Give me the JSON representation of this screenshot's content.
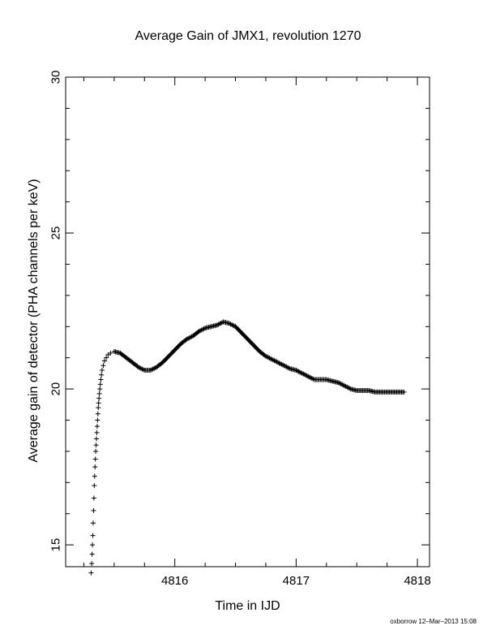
{
  "chart_data": {
    "type": "scatter",
    "title": "Average Gain of JMX1, revolution 1270",
    "xlabel": "Time in IJD",
    "ylabel": "Average gain of detector (PHA channels per keV)",
    "xlim": [
      4815.1,
      4818.1
    ],
    "ylim": [
      14.3,
      30
    ],
    "xticks": [
      4816,
      4817,
      4818
    ],
    "xtick_labels": [
      "4816",
      "4817",
      "4818"
    ],
    "yticks": [
      15,
      20,
      25,
      30
    ],
    "ytick_labels": [
      "15",
      "20",
      "25",
      "30"
    ],
    "marker": "plus",
    "grid": false,
    "series": [
      {
        "color": "#000000",
        "points": [
          [
            4815.31,
            14.1
          ],
          [
            4815.315,
            14.4
          ],
          [
            4815.318,
            14.7
          ],
          [
            4815.321,
            15.0
          ],
          [
            4815.324,
            15.3
          ],
          [
            4815.327,
            15.7
          ],
          [
            4815.33,
            16.1
          ],
          [
            4815.333,
            16.5
          ],
          [
            4815.336,
            16.9
          ],
          [
            4815.339,
            17.2
          ],
          [
            4815.342,
            17.5
          ],
          [
            4815.345,
            17.75
          ],
          [
            4815.348,
            18.0
          ],
          [
            4815.351,
            18.2
          ],
          [
            4815.354,
            18.4
          ],
          [
            4815.357,
            18.6
          ],
          [
            4815.36,
            18.8
          ],
          [
            4815.363,
            19.0
          ],
          [
            4815.366,
            19.2
          ],
          [
            4815.369,
            19.4
          ],
          [
            4815.372,
            19.55
          ],
          [
            4815.375,
            19.7
          ],
          [
            4815.378,
            19.85
          ],
          [
            4815.382,
            20.0
          ],
          [
            4815.386,
            20.15
          ],
          [
            4815.39,
            20.3
          ],
          [
            4815.395,
            20.45
          ],
          [
            4815.4,
            20.6
          ],
          [
            4815.41,
            20.75
          ],
          [
            4815.42,
            20.9
          ],
          [
            4815.435,
            21.0
          ],
          [
            4815.45,
            21.1
          ],
          [
            4815.47,
            21.15
          ],
          [
            4815.5,
            21.2
          ],
          [
            4815.55,
            21.15
          ],
          [
            4815.6,
            21.0
          ],
          [
            4815.65,
            20.85
          ],
          [
            4815.7,
            20.7
          ],
          [
            4815.75,
            20.6
          ],
          [
            4815.8,
            20.6
          ],
          [
            4815.85,
            20.7
          ],
          [
            4815.9,
            20.85
          ],
          [
            4815.95,
            21.05
          ],
          [
            4816.0,
            21.25
          ],
          [
            4816.05,
            21.45
          ],
          [
            4816.1,
            21.6
          ],
          [
            4816.15,
            21.7
          ],
          [
            4816.2,
            21.85
          ],
          [
            4816.25,
            21.95
          ],
          [
            4816.3,
            22.0
          ],
          [
            4816.35,
            22.05
          ],
          [
            4816.4,
            22.15
          ],
          [
            4816.45,
            22.1
          ],
          [
            4816.5,
            22.0
          ],
          [
            4816.55,
            21.8
          ],
          [
            4816.6,
            21.6
          ],
          [
            4816.65,
            21.4
          ],
          [
            4816.7,
            21.2
          ],
          [
            4816.75,
            21.05
          ],
          [
            4816.8,
            20.95
          ],
          [
            4816.85,
            20.85
          ],
          [
            4816.9,
            20.75
          ],
          [
            4816.95,
            20.65
          ],
          [
            4817.0,
            20.6
          ],
          [
            4817.05,
            20.5
          ],
          [
            4817.1,
            20.4
          ],
          [
            4817.15,
            20.3
          ],
          [
            4817.2,
            20.3
          ],
          [
            4817.25,
            20.3
          ],
          [
            4817.3,
            20.25
          ],
          [
            4817.35,
            20.2
          ],
          [
            4817.4,
            20.1
          ],
          [
            4817.45,
            20.0
          ],
          [
            4817.5,
            19.95
          ],
          [
            4817.55,
            19.95
          ],
          [
            4817.6,
            19.95
          ],
          [
            4817.65,
            19.9
          ],
          [
            4817.7,
            19.9
          ],
          [
            4817.75,
            19.9
          ],
          [
            4817.8,
            19.9
          ],
          [
            4817.85,
            19.9
          ],
          [
            4817.89,
            19.9
          ]
        ]
      }
    ]
  },
  "footer_note": "oxborrow 12–Mar–2013 15:08"
}
